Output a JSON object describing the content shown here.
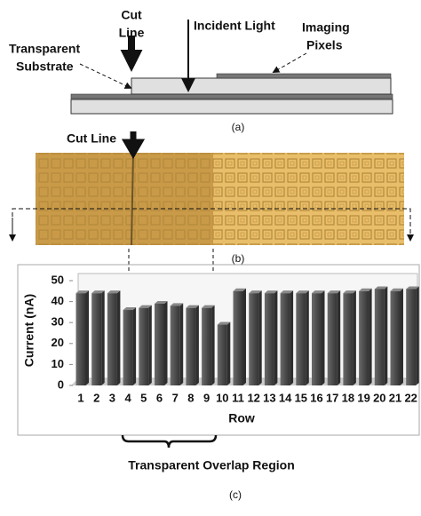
{
  "diagram": {
    "cut_line": [
      "Cut",
      "Line"
    ],
    "incident_light": "Incident Light",
    "imaging_pixels": [
      "Imaging",
      "Pixels"
    ],
    "transparent_substrate": [
      "Transparent",
      "Substrate"
    ],
    "caption": "(a)"
  },
  "photo": {
    "cut_line": "Cut Line",
    "caption": "(b)"
  },
  "chart_data": {
    "type": "bar",
    "categories": [
      "1",
      "2",
      "3",
      "4",
      "5",
      "6",
      "7",
      "8",
      "9",
      "10",
      "11",
      "12",
      "13",
      "14",
      "15",
      "16",
      "17",
      "18",
      "19",
      "20",
      "21",
      "22"
    ],
    "values": [
      44,
      44,
      44,
      36,
      37,
      39,
      38,
      37,
      37,
      29,
      45,
      44,
      44,
      44,
      44,
      44,
      44,
      44,
      45,
      46,
      45,
      46
    ],
    "color": "#4d4d4d",
    "xlabel": "Row",
    "ylabel": "Current (nA)",
    "ylim": [
      0,
      50
    ],
    "yticks": [
      0,
      10,
      20,
      30,
      40,
      50
    ],
    "grid": false,
    "annotation": "Transparent Overlap Region",
    "caption": "(c)"
  }
}
